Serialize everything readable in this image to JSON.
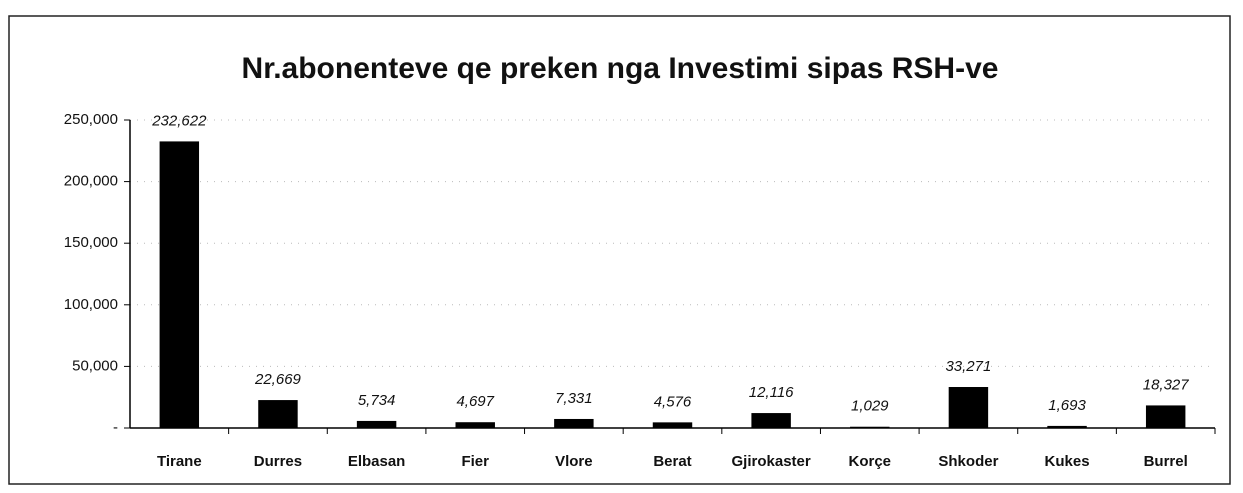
{
  "chart_data": {
    "type": "bar",
    "title": "Nr.abonenteve qe preken nga Investimi sipas RSH-ve",
    "categories": [
      "Tirane",
      "Durres",
      "Elbasan",
      "Fier",
      "Vlore",
      "Berat",
      "Gjirokaster",
      "Korçe",
      "Shkoder",
      "Kukes",
      "Burrel"
    ],
    "values": [
      232622,
      22669,
      5734,
      4697,
      7331,
      4576,
      12116,
      1029,
      33271,
      1693,
      18327
    ],
    "value_labels": [
      "232,622",
      "22,669",
      "5,734",
      "4,697",
      "7,331",
      "4,576",
      "12,116",
      "1,029",
      "33,271",
      "1,693",
      "18,327"
    ],
    "color": "#000000",
    "ylim": [
      0,
      250000
    ],
    "yticks": [
      {
        "value": 0,
        "label": "-"
      },
      {
        "value": 50000,
        "label": "50,000"
      },
      {
        "value": 100000,
        "label": "100,000"
      },
      {
        "value": 150000,
        "label": "150,000"
      },
      {
        "value": 200000,
        "label": "200,000"
      },
      {
        "value": 250000,
        "label": "250,000"
      }
    ],
    "grid": true
  }
}
